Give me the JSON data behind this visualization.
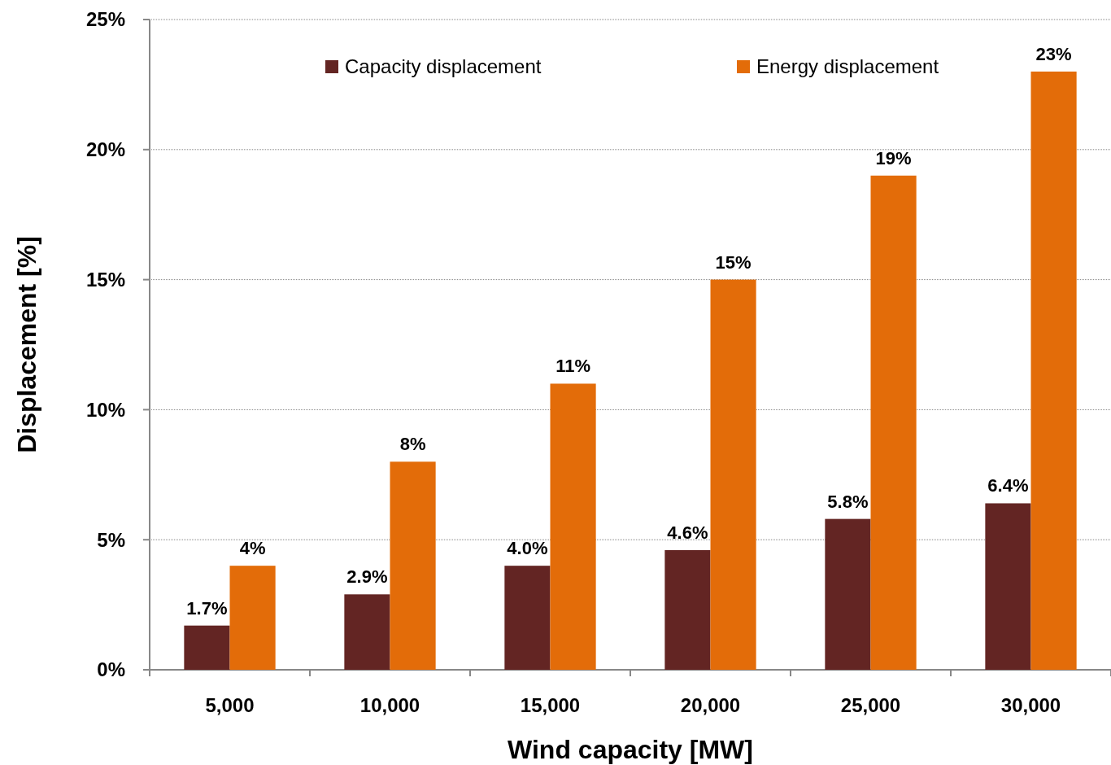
{
  "chart_data": {
    "type": "bar",
    "xlabel": "Wind capacity [MW]",
    "ylabel": "Displacement [%]",
    "categories": [
      "5,000",
      "10,000",
      "15,000",
      "20,000",
      "25,000",
      "30,000"
    ],
    "series": [
      {
        "name": "Capacity displacement",
        "color": "#632523",
        "values": [
          1.7,
          2.9,
          4.0,
          4.6,
          5.8,
          6.4
        ],
        "value_labels": [
          "1.7%",
          "2.9%",
          "4.0%",
          "4.6%",
          "5.8%",
          "6.4%"
        ]
      },
      {
        "name": "Energy displacement",
        "color": "#e36c09",
        "values": [
          4,
          8,
          11,
          15,
          19,
          23
        ],
        "value_labels": [
          "4%",
          "8%",
          "11%",
          "15%",
          "19%",
          "23%"
        ]
      }
    ],
    "ylim": [
      0,
      25
    ],
    "yticks": [
      {
        "value": 0,
        "label": "0%"
      },
      {
        "value": 5,
        "label": "5%"
      },
      {
        "value": 10,
        "label": "10%"
      },
      {
        "value": 15,
        "label": "15%"
      },
      {
        "value": 20,
        "label": "20%"
      },
      {
        "value": 25,
        "label": "25%"
      }
    ],
    "grid": "y",
    "legend": "top"
  }
}
